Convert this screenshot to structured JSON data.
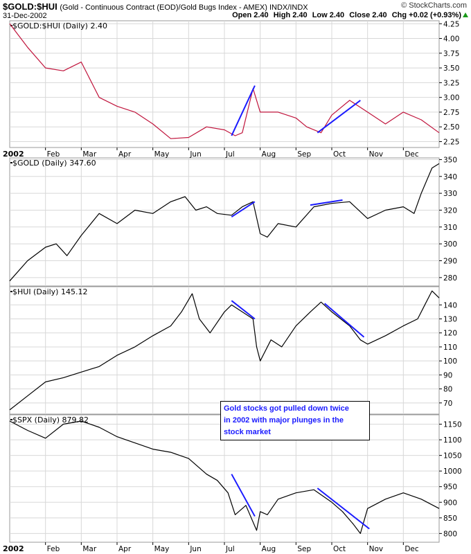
{
  "header": {
    "symbol": "$GOLD:$HUI",
    "description": "(Gold - Continuous Contract (EOD)/Gold Bugs Index - AMEX) INDX/INDX",
    "date": "31-Dec-2002",
    "brand": "© StockCharts.com",
    "open": "Open 2.40",
    "high": "High 2.40",
    "low": "Low 2.40",
    "close": "Close 2.40",
    "chg": "Chg +0.02 (+0.93%)",
    "chg_icon": "up-triangle-icon",
    "chg_color": "#1a9a1a"
  },
  "annotation": {
    "line1": "Gold stocks got pulled down twice",
    "line2": "in 2002 with major plunges in the",
    "line3": "stock market",
    "color": "#1a1aff"
  },
  "chart_data": [
    {
      "type": "line",
      "label": "$GOLD:$HUI (Daily) 2.40",
      "color": "#c0143c",
      "ylim": [
        2.15,
        4.3
      ],
      "yticks": [
        "4.25",
        "4.00",
        "3.75",
        "3.50",
        "3.25",
        "3.00",
        "2.75",
        "2.50",
        "2.25"
      ],
      "x_month": [
        0,
        0.5,
        1,
        1.5,
        2,
        2.5,
        3,
        3.5,
        4,
        4.5,
        5,
        5.5,
        6,
        6.3,
        6.5,
        6.8,
        7,
        7.5,
        8,
        8.3,
        8.7,
        9,
        9.5,
        10,
        10.5,
        11,
        11.5,
        12
      ],
      "values": [
        4.25,
        3.85,
        3.5,
        3.45,
        3.6,
        3.0,
        2.85,
        2.75,
        2.55,
        2.3,
        2.32,
        2.5,
        2.45,
        2.35,
        2.4,
        3.15,
        2.75,
        2.75,
        2.65,
        2.5,
        2.4,
        2.7,
        2.95,
        2.75,
        2.55,
        2.75,
        2.62,
        2.4
      ],
      "trendlines": [
        [
          6.2,
          2.35,
          6.85,
          3.2
        ],
        [
          8.6,
          2.4,
          9.8,
          2.95
        ]
      ]
    },
    {
      "type": "line",
      "label": "$GOLD (Daily) 347.60",
      "color": "#000000",
      "ylim": [
        275,
        351
      ],
      "yticks": [
        "350",
        "340",
        "330",
        "320",
        "310",
        "300",
        "290",
        "280"
      ],
      "x_month": [
        0,
        0.5,
        1,
        1.3,
        1.6,
        2,
        2.5,
        3,
        3.5,
        4,
        4.5,
        4.9,
        5.2,
        5.5,
        5.8,
        6.2,
        6.5,
        6.8,
        7,
        7.2,
        7.5,
        8,
        8.5,
        9,
        9.5,
        10,
        10.5,
        11,
        11.3,
        11.5,
        11.8,
        12
      ],
      "values": [
        278,
        290,
        298,
        300,
        293,
        305,
        318,
        312,
        320,
        318,
        325,
        328,
        320,
        322,
        318,
        317,
        322,
        325,
        306,
        304,
        312,
        310,
        322,
        324,
        325,
        315,
        320,
        322,
        318,
        330,
        345,
        347.6
      ],
      "trendlines": [
        [
          6.2,
          316,
          6.85,
          325
        ],
        [
          8.4,
          323,
          9.3,
          326
        ]
      ]
    },
    {
      "type": "line",
      "label": "$HUI (Daily) 145.12",
      "color": "#000000",
      "ylim": [
        62,
        153
      ],
      "yticks": [
        "140",
        "130",
        "120",
        "110",
        "100",
        "90",
        "80",
        "70"
      ],
      "x_month": [
        0,
        0.5,
        1,
        1.5,
        2,
        2.5,
        3,
        3.5,
        4,
        4.5,
        4.8,
        5.1,
        5.3,
        5.6,
        6.0,
        6.2,
        6.5,
        6.8,
        6.9,
        7.0,
        7.3,
        7.6,
        8,
        8.4,
        8.7,
        9,
        9.5,
        9.8,
        10,
        10.5,
        11,
        11.4,
        11.6,
        11.8,
        12
      ],
      "values": [
        65,
        75,
        85,
        88,
        92,
        96,
        104,
        110,
        118,
        125,
        135,
        148,
        130,
        120,
        135,
        140,
        135,
        130,
        110,
        100,
        115,
        110,
        125,
        135,
        142,
        135,
        125,
        115,
        112,
        118,
        125,
        130,
        140,
        150,
        145
      ],
      "trendlines": [
        [
          6.2,
          143,
          6.85,
          130
        ],
        [
          8.8,
          141,
          9.9,
          117
        ]
      ]
    },
    {
      "type": "line",
      "label": "$SPX (Daily) 879.82",
      "color": "#000000",
      "ylim": [
        772,
        1180
      ],
      "yticks": [
        "1150",
        "1100",
        "1050",
        "1000",
        "950",
        "900",
        "850",
        "800"
      ],
      "x_month": [
        0,
        0.5,
        1,
        1.5,
        2,
        2.5,
        3,
        3.5,
        4,
        4.5,
        5,
        5.5,
        5.8,
        6.1,
        6.3,
        6.6,
        6.9,
        7.0,
        7.2,
        7.5,
        8,
        8.5,
        9,
        9.3,
        9.6,
        9.8,
        10,
        10.5,
        11,
        11.5,
        12
      ],
      "values": [
        1160,
        1130,
        1105,
        1150,
        1160,
        1140,
        1110,
        1090,
        1070,
        1060,
        1040,
        990,
        970,
        930,
        860,
        890,
        810,
        870,
        860,
        910,
        930,
        940,
        900,
        870,
        830,
        800,
        880,
        910,
        930,
        910,
        880
      ],
      "trendlines": [
        [
          6.2,
          990,
          6.85,
          855
        ],
        [
          8.6,
          945,
          10.05,
          815
        ]
      ]
    }
  ],
  "x_axis": {
    "year_label": "2002",
    "months": [
      "Feb",
      "Mar",
      "Apr",
      "May",
      "Jun",
      "Jul",
      "Aug",
      "Sep",
      "Oct",
      "Nov",
      "Dec"
    ]
  },
  "colors": {
    "grid": "#d8d8d8",
    "trendline": "#1a1aff",
    "border": "#999999"
  }
}
